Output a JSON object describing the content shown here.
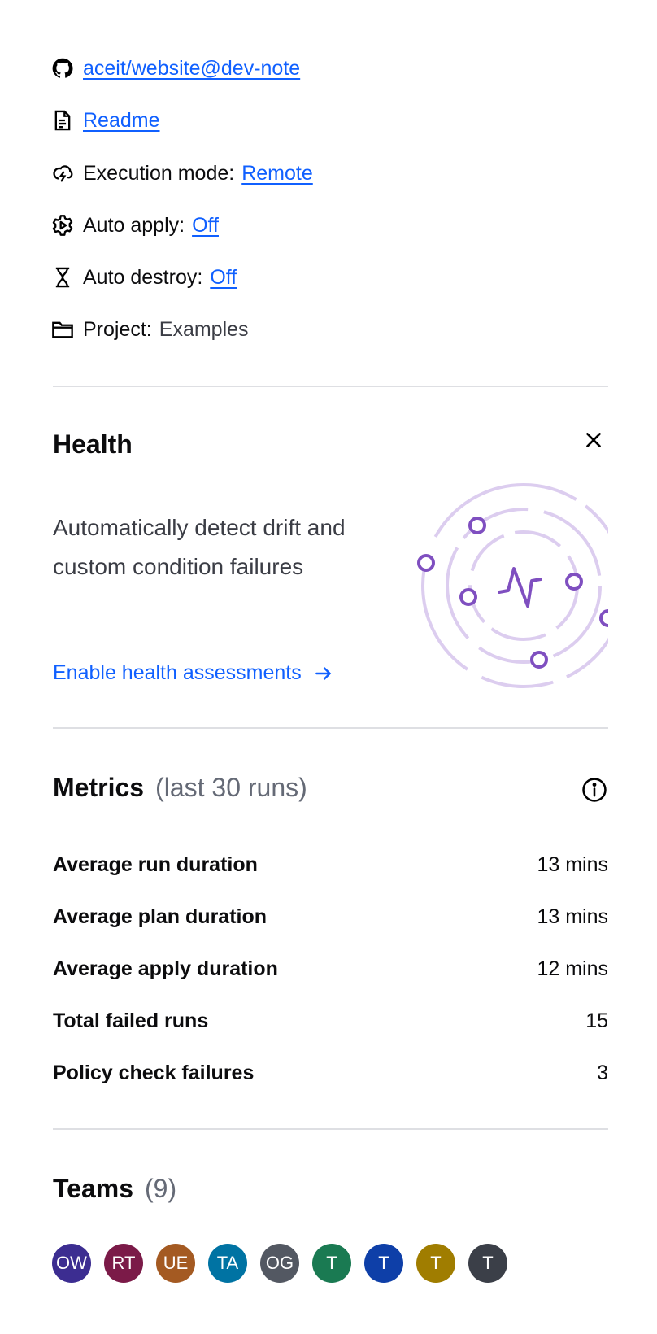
{
  "details": {
    "repo_link": "aceit/website@dev-note",
    "readme_link": "Readme",
    "execution_mode": {
      "label": "Execution mode:",
      "value": "Remote"
    },
    "auto_apply": {
      "label": "Auto apply:",
      "value": "Off"
    },
    "auto_destroy": {
      "label": "Auto destroy:",
      "value": "Off"
    },
    "project": {
      "label": "Project:",
      "value": "Examples"
    }
  },
  "health": {
    "title": "Health",
    "description": "Automatically detect drift and custom condition failures",
    "enable_link": "Enable health assessments"
  },
  "metrics": {
    "title": "Metrics",
    "subtitle": "(last 30 runs)",
    "rows": [
      {
        "label": "Average run duration",
        "value": "13 mins"
      },
      {
        "label": "Average plan duration",
        "value": "13 mins"
      },
      {
        "label": "Average apply duration",
        "value": "12 mins"
      },
      {
        "label": "Total failed runs",
        "value": "15"
      },
      {
        "label": "Policy check failures",
        "value": "3"
      }
    ]
  },
  "teams": {
    "title": "Teams",
    "count": "(9)",
    "avatars": [
      {
        "initials": "OW",
        "color": "#3c2d91"
      },
      {
        "initials": "RT",
        "color": "#7b1a48"
      },
      {
        "initials": "UE",
        "color": "#a45a22"
      },
      {
        "initials": "TA",
        "color": "#0073a3"
      },
      {
        "initials": "OG",
        "color": "#535862"
      },
      {
        "initials": "T",
        "color": "#1a7a52"
      },
      {
        "initials": "T",
        "color": "#0e3fa8"
      },
      {
        "initials": "T",
        "color": "#a07d00"
      },
      {
        "initials": "T",
        "color": "#3b3f48"
      }
    ]
  },
  "colors": {
    "link": "#1060ff",
    "illustration": "#7f4fc0"
  }
}
